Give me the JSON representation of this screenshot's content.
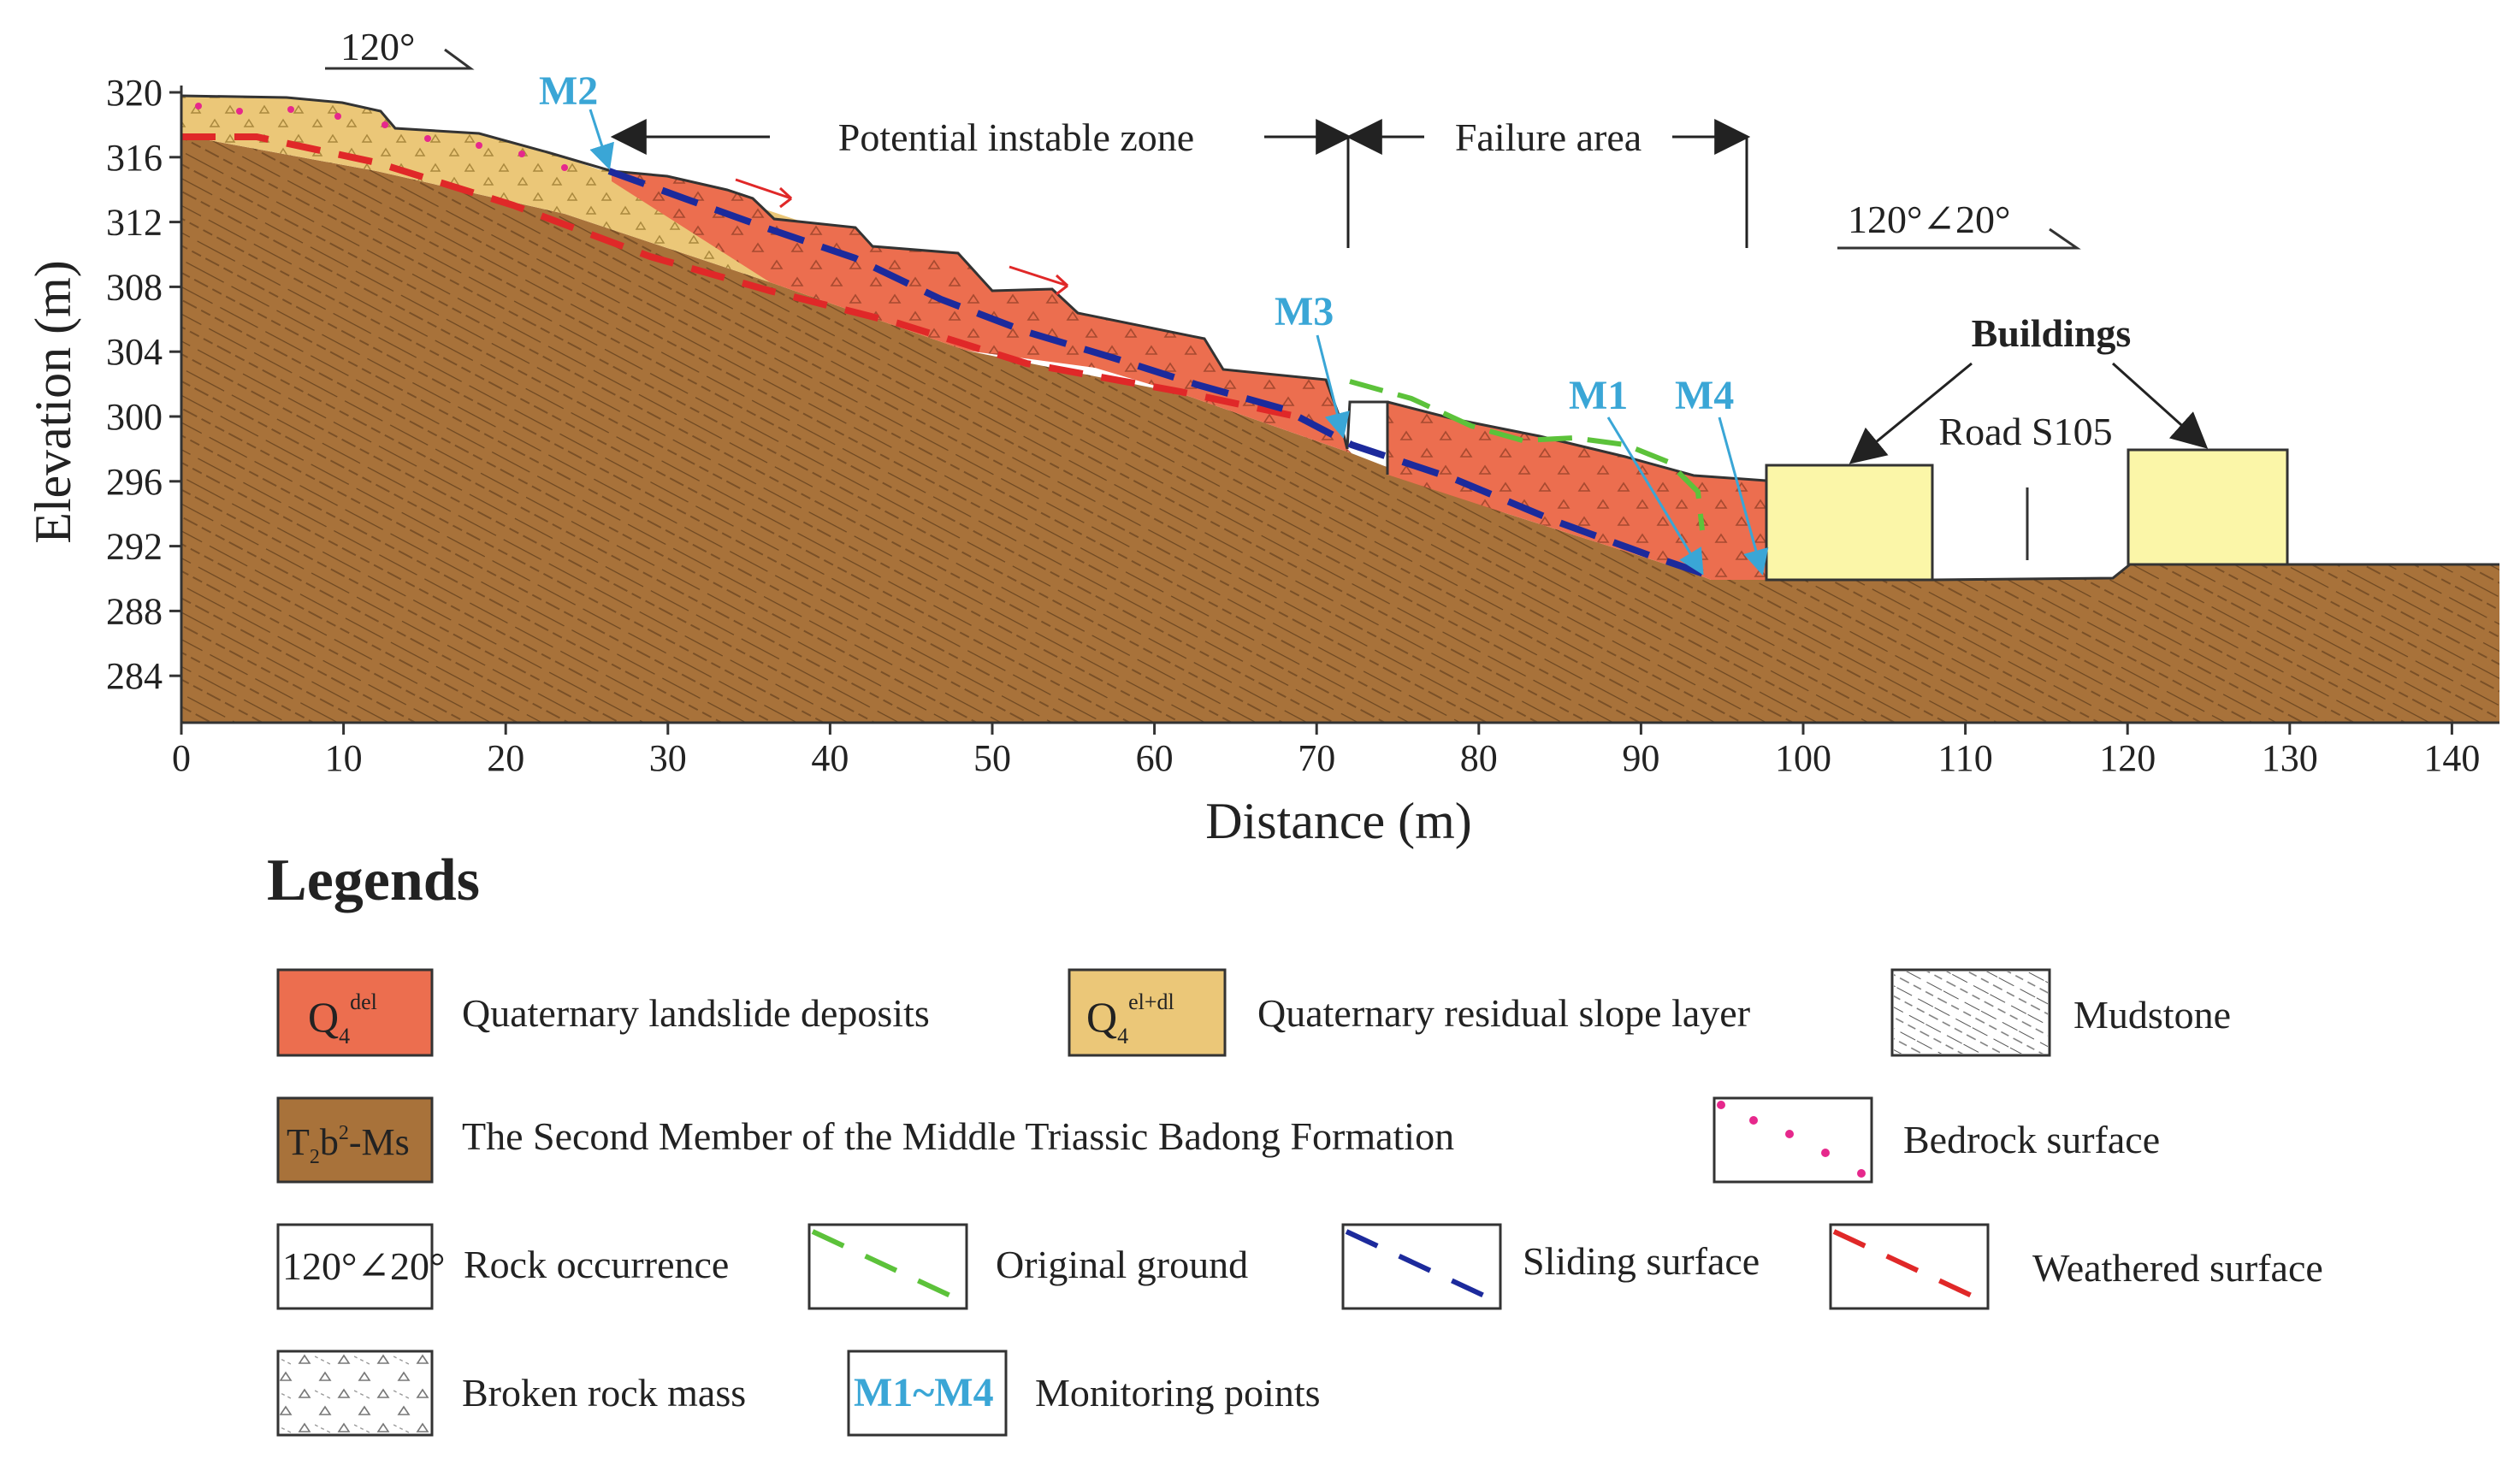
{
  "axes": {
    "x_label": "Distance (m)",
    "y_label": "Elevation (m)",
    "x_ticks": [
      "0",
      "10",
      "20",
      "30",
      "40",
      "50",
      "60",
      "70",
      "80",
      "90",
      "100",
      "110",
      "120",
      "130",
      "140"
    ],
    "y_ticks": [
      "320",
      "316",
      "312",
      "308",
      "304",
      "300",
      "296",
      "292",
      "288",
      "284"
    ]
  },
  "annotations": {
    "occurrence_top": "120°",
    "occurrence_right": "120°∠20°",
    "potential_zone": "Potential instable zone",
    "failure_area": "Failure area",
    "buildings": "Buildings",
    "road": "Road S105"
  },
  "monitoring_points": {
    "m1": "M1",
    "m2": "M2",
    "m3": "M3",
    "m4": "M4"
  },
  "legend": {
    "title": "Legends",
    "q4del_symbol": {
      "base": "Q",
      "sub": "4",
      "sup": "del"
    },
    "q4del_label": "Quaternary landslide deposits",
    "q4eldl_symbol": {
      "base": "Q",
      "sub": "4",
      "sup": "el+dl"
    },
    "q4eldl_label": "Quaternary residual slope layer",
    "mudstone_label": "Mudstone",
    "t2b2_symbol": {
      "base": "T",
      "sub": "2",
      "mid": "b",
      "sup": "2",
      "rest": "-Ms"
    },
    "t2b2_label": "The Second Member of the Middle Triassic Badong Formation",
    "bedrock_label": "Bedrock surface",
    "occurrence_symbol": "120°∠20°",
    "occurrence_label": "Rock occurrence",
    "original_ground_label": "Original ground",
    "sliding_surface_label": "Sliding surface",
    "weathered_surface_label": "Weathered surface",
    "broken_rock_label": "Broken rock mass",
    "monitoring_symbol": "M1~M4",
    "monitoring_label": "Monitoring points"
  },
  "colors": {
    "bedrock": "#a8723a",
    "deposits": "#ec6e4f",
    "residual": "#ebc778",
    "building": "#fbf6a8",
    "original_ground": "#5cc23a",
    "sliding": "#1c2a9c",
    "weathered": "#e02828",
    "monitoring": "#3aa6d6",
    "bedrock_dots": "#e6288c"
  }
}
